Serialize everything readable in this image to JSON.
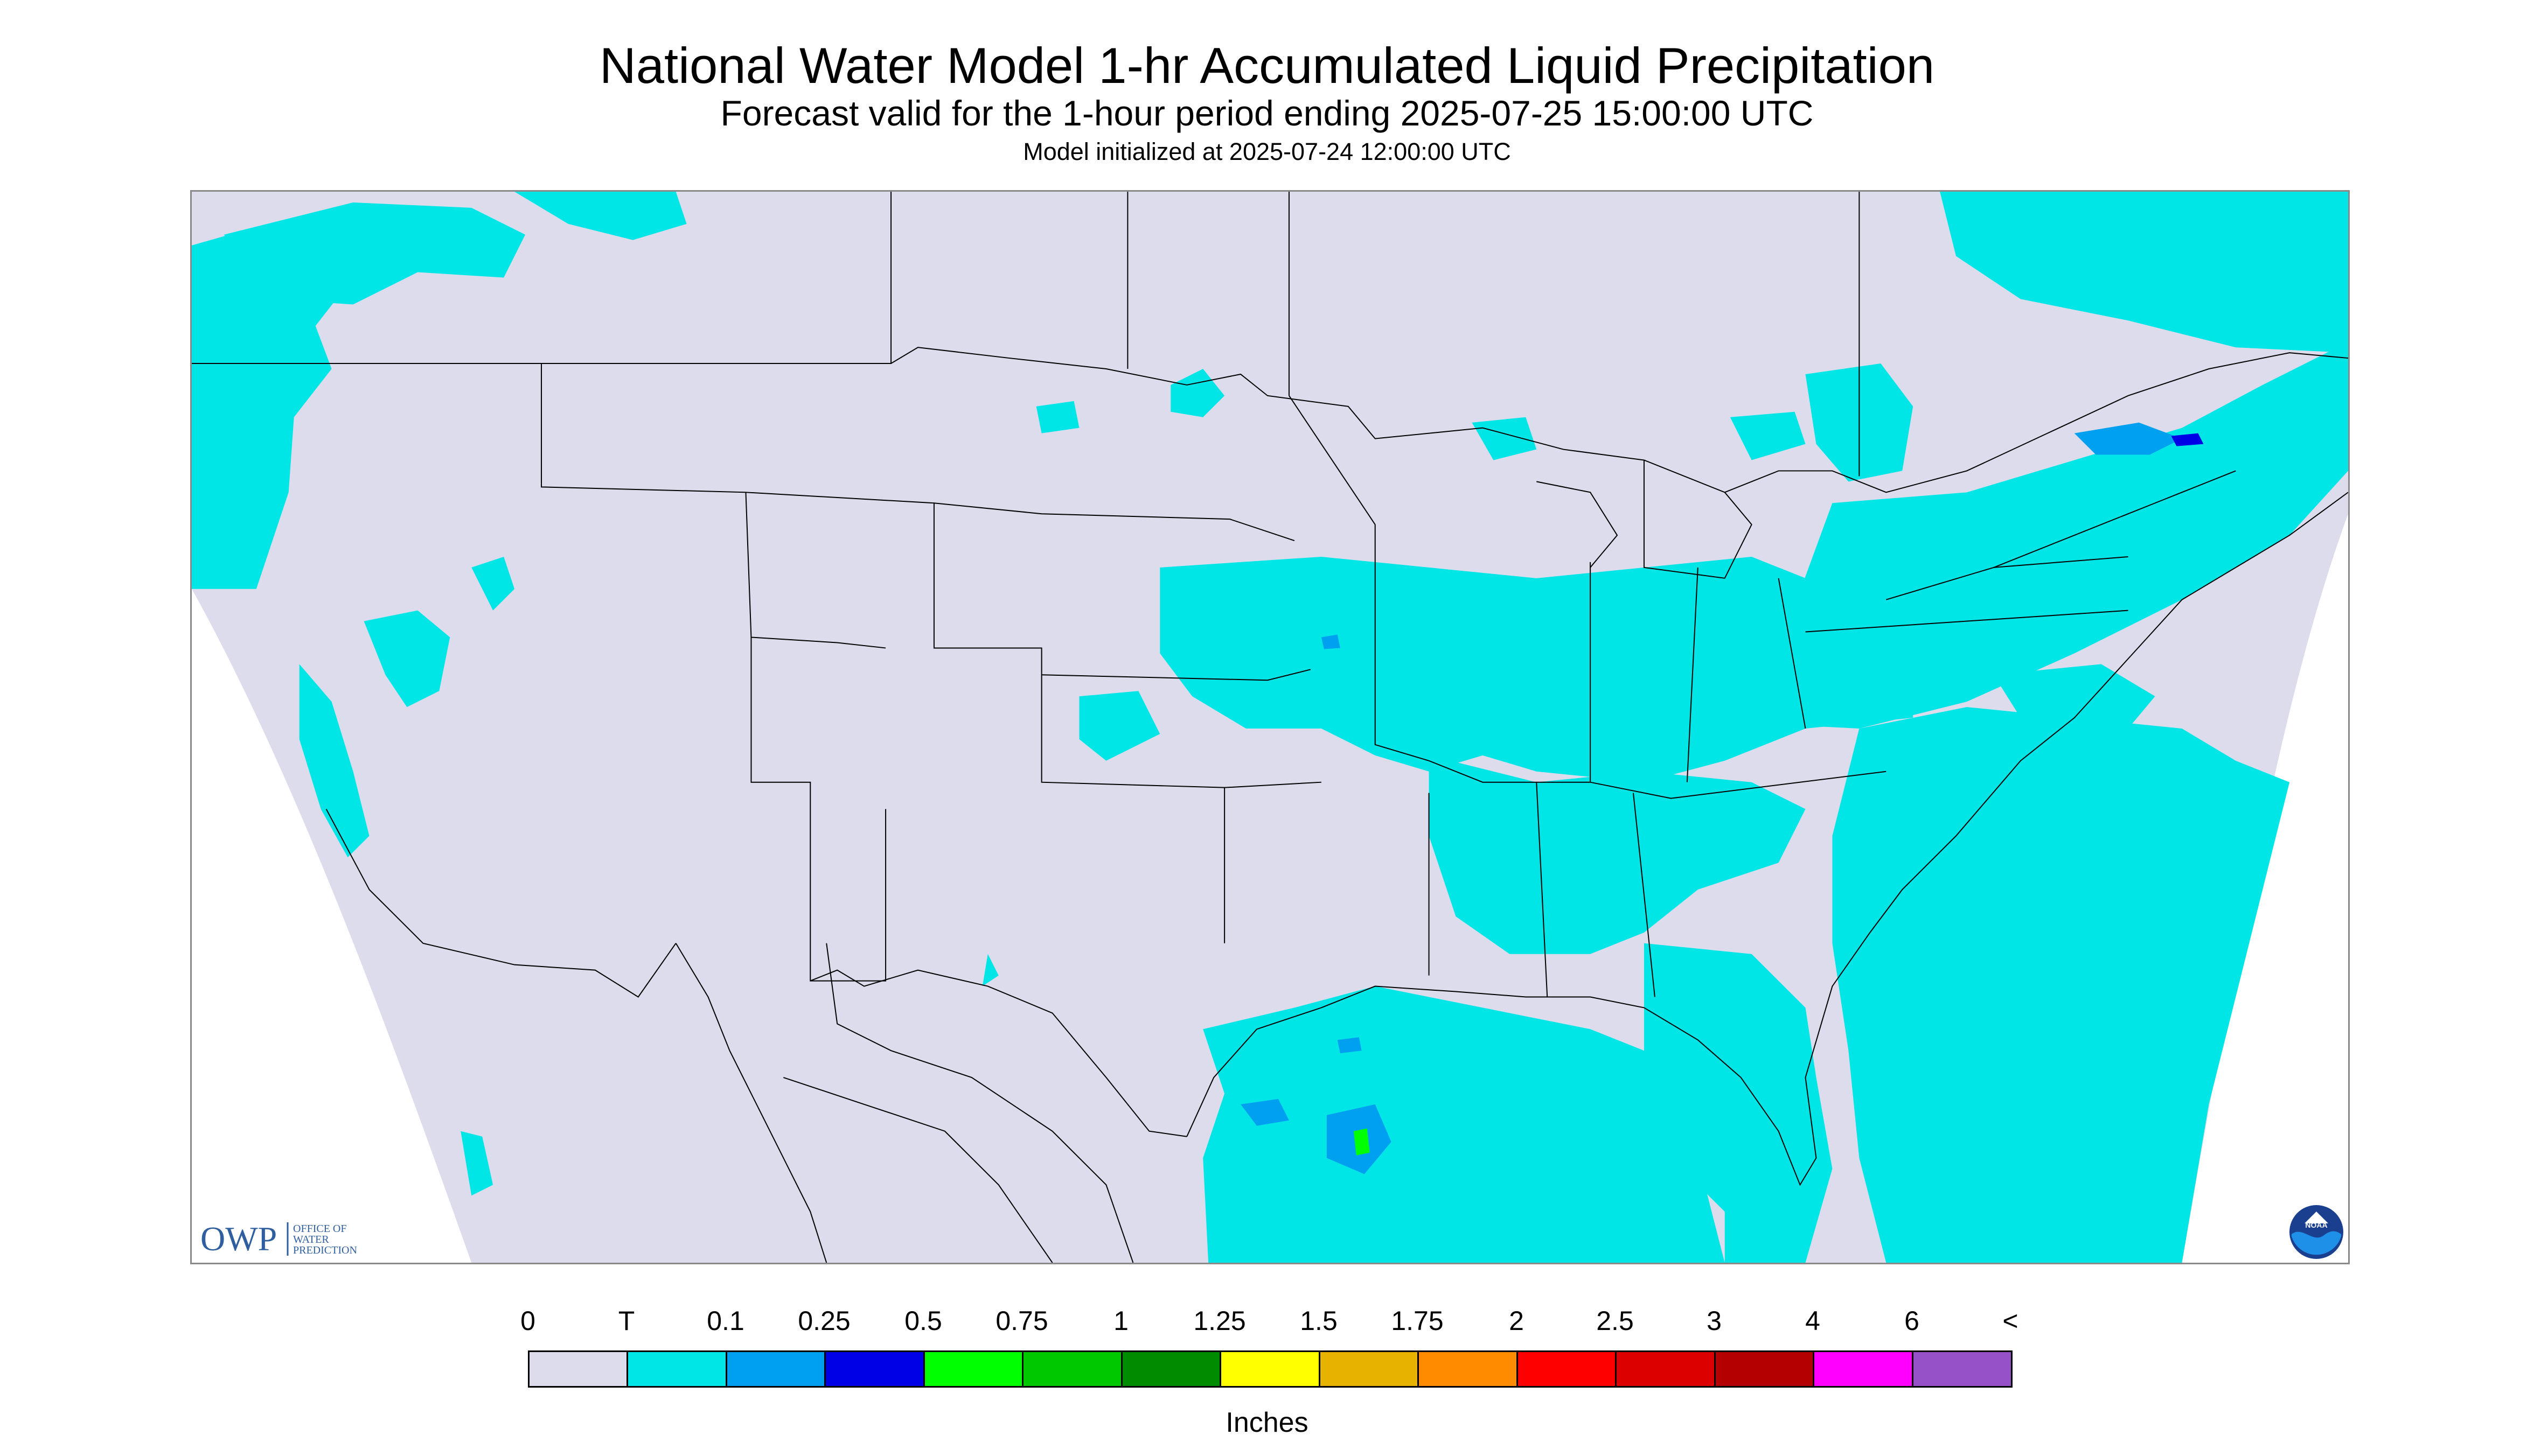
{
  "title": "National Water Model 1-hr Accumulated Liquid Precipitation",
  "subtitle": "Forecast valid for the 1-hour period ending 2025-07-25 15:00:00 UTC",
  "init_line": "Model initialized at 2025-07-24 12:00:00 UTC",
  "logos": {
    "owp_mark": "OWP",
    "owp_text": [
      "OFFICE OF",
      "WATER",
      "PREDICTION"
    ],
    "noaa_text": "NOAA"
  },
  "legend": {
    "tick_labels": [
      "0",
      "T",
      "0.1",
      "0.25",
      "0.5",
      "0.75",
      "1",
      "1.25",
      "1.5",
      "1.75",
      "2",
      "2.5",
      "3",
      "4",
      "6",
      "<"
    ],
    "colors": [
      "#dcdcec",
      "#00e6e6",
      "#00a0f0",
      "#0000e6",
      "#00ff00",
      "#00c800",
      "#008c00",
      "#ffff00",
      "#e6b400",
      "#ff8c00",
      "#ff0000",
      "#dc0000",
      "#b40000",
      "#ff00ff",
      "#9650c8"
    ],
    "units_label": "Inches"
  },
  "map": {
    "domain_fill": "#dcdcec",
    "trace_color": "#00e6e6",
    "light_color": "#00a0f0",
    "moderate_color": "#0000e6",
    "heavy_color": "#00ff00"
  }
}
